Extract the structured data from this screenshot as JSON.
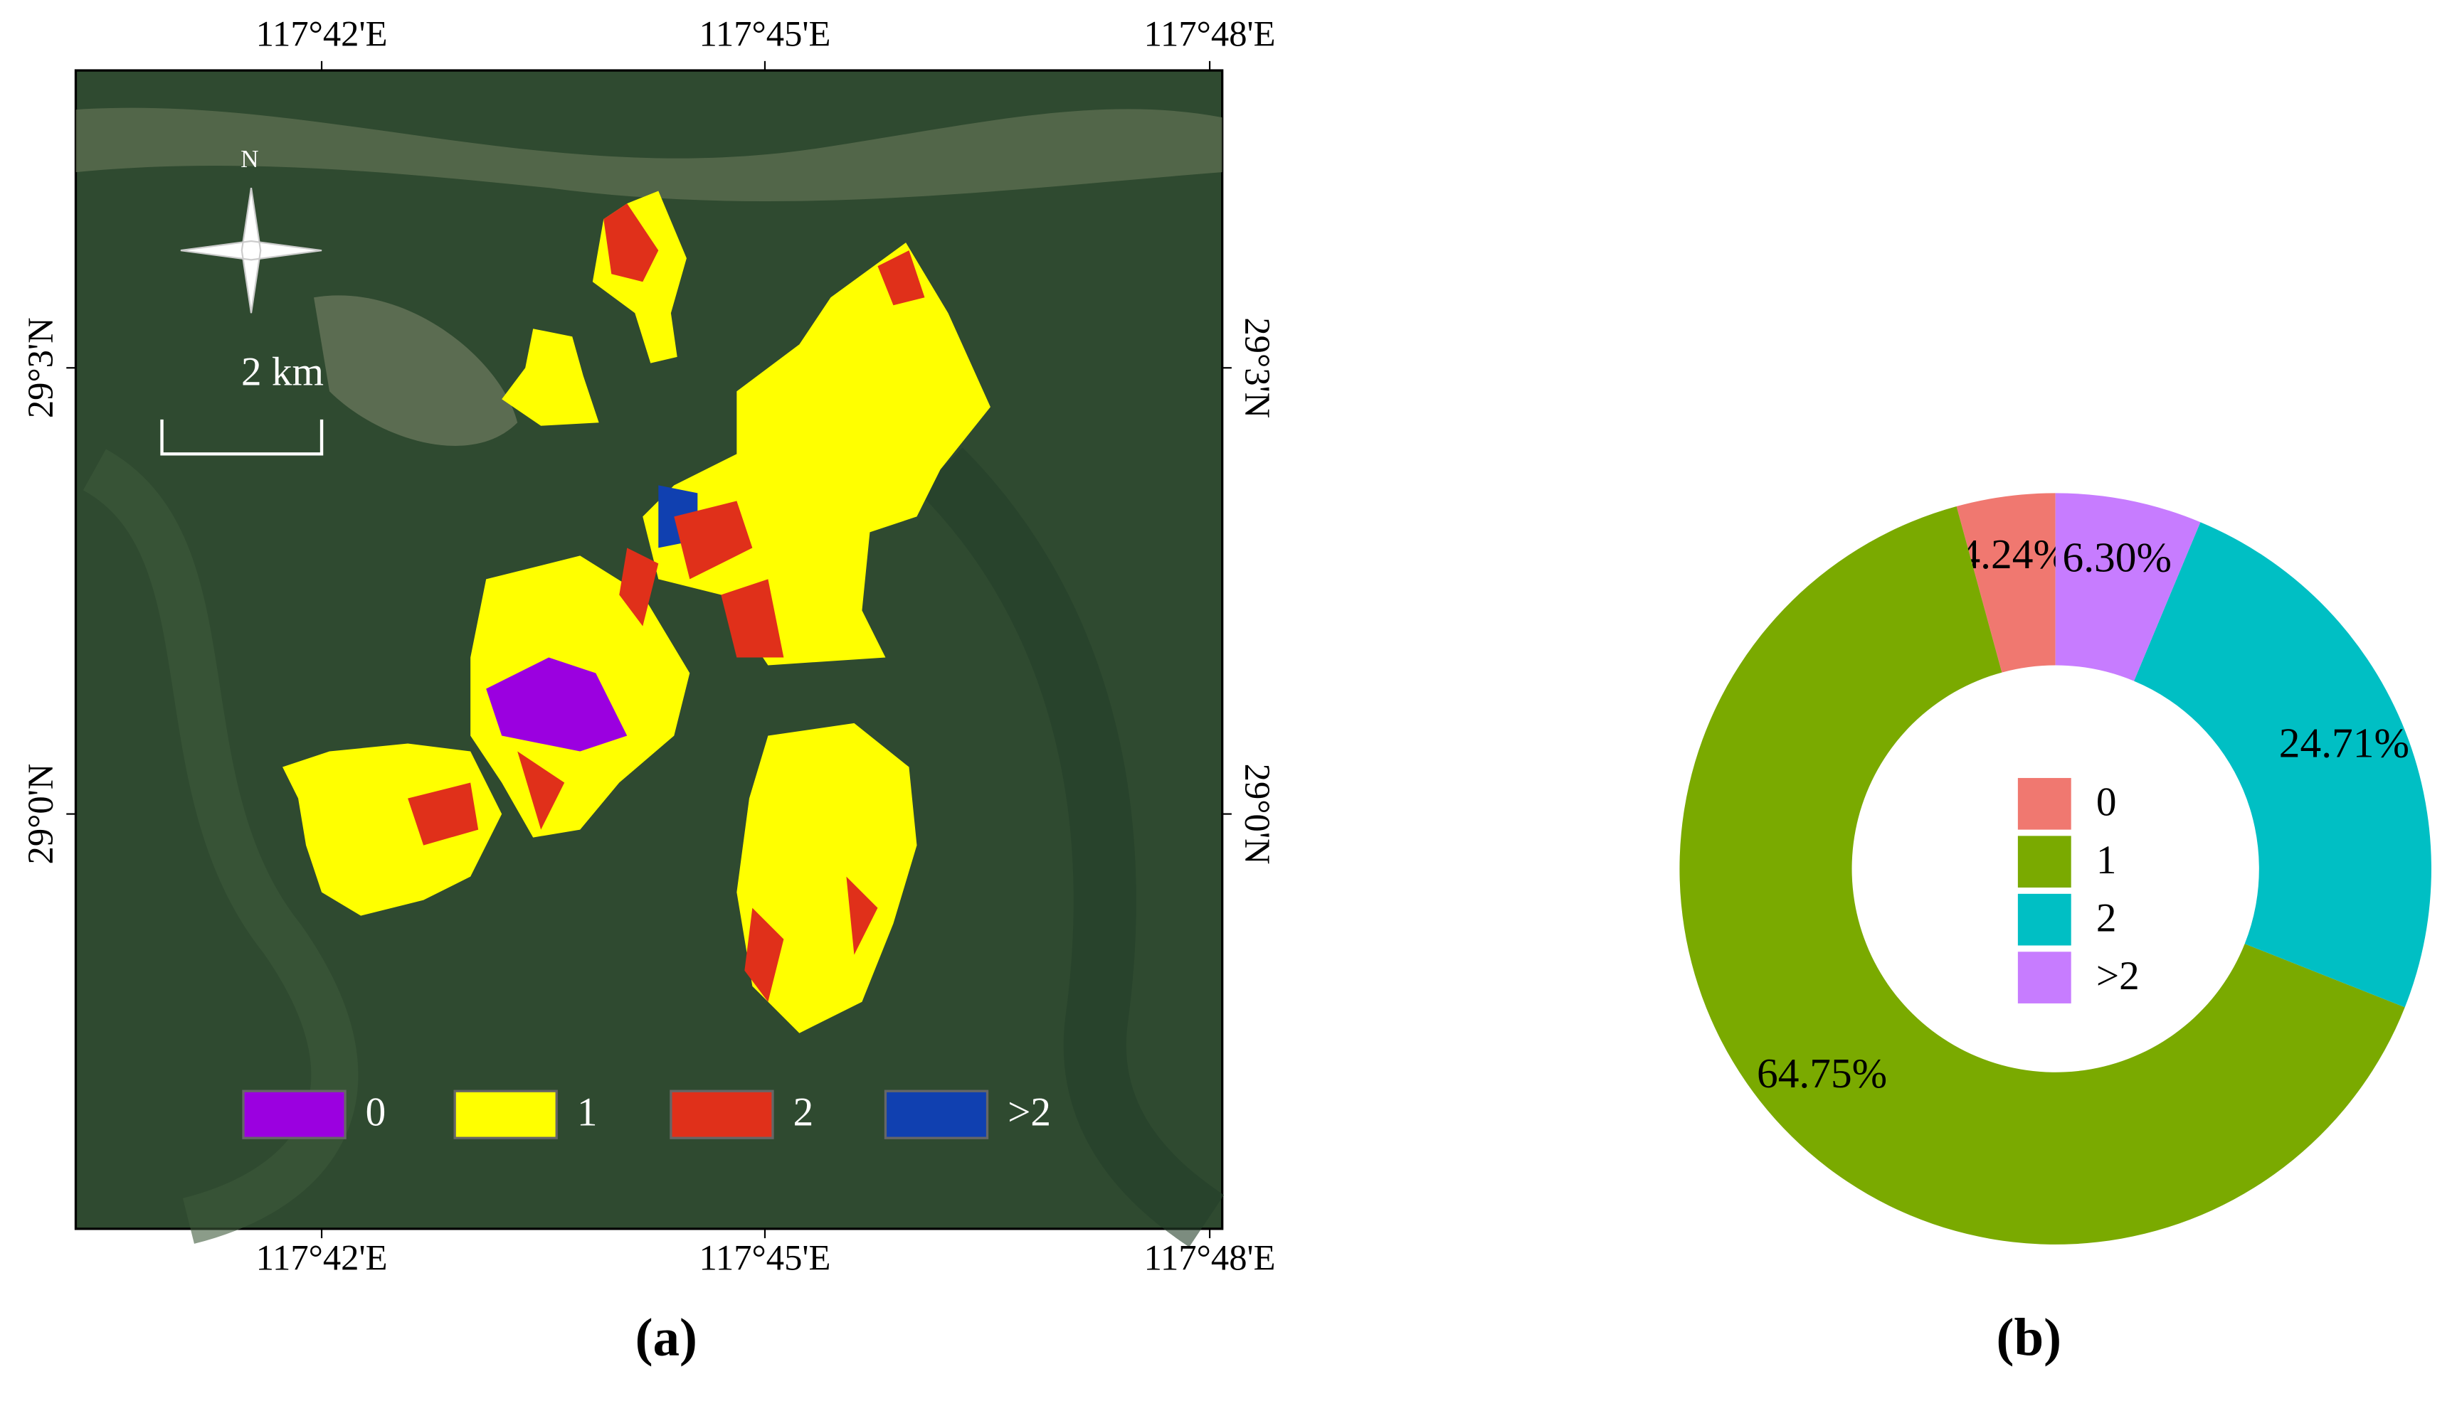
{
  "map": {
    "caption": "(a)",
    "lon_labels": [
      "117°42'E",
      "117°45'E",
      "117°48'E"
    ],
    "lat_labels": [
      "29°3'N",
      "29°0'N"
    ],
    "north": "N",
    "scale_bar": "2 km",
    "legend": {
      "labels": [
        "0",
        "1",
        "2",
        ">2"
      ],
      "colors": [
        "#9b00e0",
        "#ffff00",
        "#e0301a",
        "#1040b0"
      ]
    }
  },
  "chart_data": {
    "type": "donut",
    "caption": "(b)",
    "categories": [
      "0",
      "1",
      "2",
      ">2"
    ],
    "values": [
      4.24,
      64.75,
      24.71,
      6.3
    ],
    "value_labels": [
      "4.24%",
      "64.75%",
      "24.71%",
      "6.30%"
    ],
    "colors": [
      "#f07870",
      "#7aaa00",
      "#00bfc4",
      "#c77cff"
    ]
  }
}
